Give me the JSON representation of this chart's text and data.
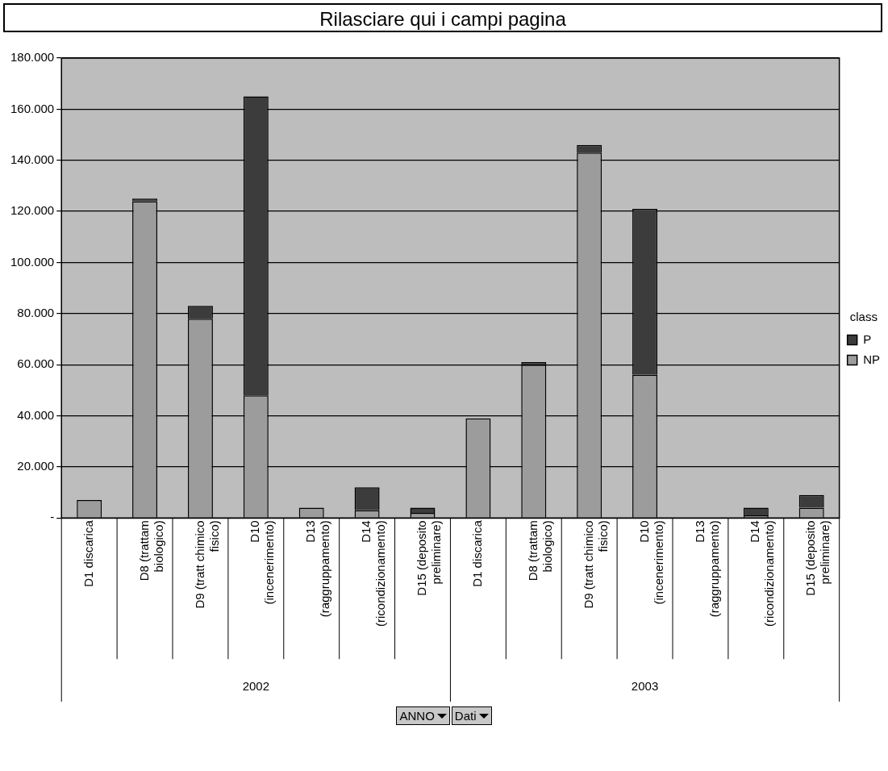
{
  "chart_data": {
    "type": "bar",
    "title": "Rilasciare qui i campi pagina",
    "stacked": true,
    "categories": [
      "D1 discarica",
      "D8 (trattam\nbiologico)",
      "D9 (tratt chimico\nfisico)",
      "D10\n(incenerimento)",
      "D13\n(raggruppamento)",
      "D14\n(ricondizionamento)",
      "D15 (deposito\npreliminare)",
      "D1 discarica",
      "D8 (trattam\nbiologico)",
      "D9 (tratt chimico\nfisico)",
      "D10\n(incenerimento)",
      "D13\n(raggruppamento)",
      "D14\n(ricondizionamento)",
      "D15 (deposito\npreliminare)"
    ],
    "series": [
      {
        "name": "NP",
        "color": "#9c9c9c",
        "values": [
          7000,
          124000,
          78000,
          48000,
          4000,
          3000,
          2000,
          39000,
          60000,
          143000,
          56000,
          0,
          1000,
          4000
        ]
      },
      {
        "name": "P",
        "color": "#3c3c3c",
        "values": [
          0,
          1000,
          5000,
          117000,
          0,
          9000,
          2000,
          0,
          1000,
          3000,
          65000,
          0,
          3000,
          5000
        ]
      }
    ],
    "ylim": [
      0,
      180000
    ],
    "yticks": [
      {
        "value": 0,
        "label": "-"
      },
      {
        "value": 20000,
        "label": "20.000"
      },
      {
        "value": 40000,
        "label": "40.000"
      },
      {
        "value": 60000,
        "label": "60.000"
      },
      {
        "value": 80000,
        "label": "80.000"
      },
      {
        "value": 100000,
        "label": "100.000"
      },
      {
        "value": 120000,
        "label": "120.000"
      },
      {
        "value": 140000,
        "label": "140.000"
      },
      {
        "value": 160000,
        "label": "160.000"
      },
      {
        "value": 180000,
        "label": "180.000"
      }
    ],
    "grid": "y",
    "legend": "right",
    "legend_title": "class",
    "annotations": [
      "2002",
      "2003",
      "ANNO",
      "Dati"
    ]
  }
}
